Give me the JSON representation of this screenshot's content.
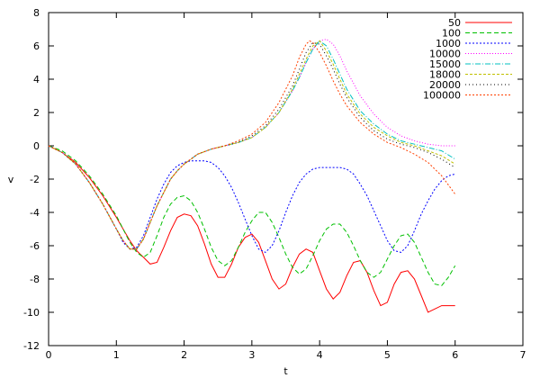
{
  "chart_data": {
    "type": "line",
    "title": "",
    "xlabel": "t",
    "ylabel": "v",
    "xlim": [
      0,
      7
    ],
    "ylim": [
      -12,
      8
    ],
    "xticks": [
      0,
      1,
      2,
      3,
      4,
      5,
      6,
      7
    ],
    "yticks": [
      -12,
      -10,
      -8,
      -6,
      -4,
      -2,
      0,
      2,
      4,
      6,
      8
    ],
    "grid": false,
    "legend_position": "top-right",
    "series": [
      {
        "name": "50",
        "color": "#ff0000",
        "dash": "solid",
        "x": [
          0,
          0.2,
          0.4,
          0.6,
          0.8,
          1.0,
          1.1,
          1.2,
          1.3,
          1.35,
          1.4,
          1.5,
          1.6,
          1.7,
          1.8,
          1.9,
          2.0,
          2.1,
          2.2,
          2.3,
          2.4,
          2.5,
          2.6,
          2.7,
          2.8,
          2.9,
          3.0,
          3.1,
          3.2,
          3.3,
          3.4,
          3.5,
          3.6,
          3.7,
          3.8,
          3.9,
          4.0,
          4.1,
          4.2,
          4.3,
          4.4,
          4.5,
          4.6,
          4.7,
          4.8,
          4.9,
          5.0,
          5.1,
          5.2,
          5.3,
          5.4,
          5.5,
          5.6,
          5.7,
          5.8,
          5.9,
          6.0
        ],
        "y": [
          0,
          -0.4,
          -1.0,
          -1.9,
          -3.0,
          -4.3,
          -5.0,
          -5.7,
          -6.3,
          -6.5,
          -6.7,
          -7.1,
          -7.0,
          -6.1,
          -5.1,
          -4.3,
          -4.1,
          -4.2,
          -4.8,
          -5.9,
          -7.1,
          -7.9,
          -7.9,
          -7.1,
          -6.1,
          -5.5,
          -5.3,
          -5.8,
          -6.9,
          -8.0,
          -8.6,
          -8.3,
          -7.3,
          -6.5,
          -6.2,
          -6.4,
          -7.5,
          -8.6,
          -9.2,
          -8.8,
          -7.8,
          -7.0,
          -6.9,
          -7.6,
          -8.7,
          -9.6,
          -9.4,
          -8.3,
          -7.6,
          -7.5,
          -8.0,
          -9.0,
          -10.0,
          -9.8,
          -9.6,
          -9.6,
          -9.6
        ]
      },
      {
        "name": "100",
        "color": "#00c000",
        "dash": "5,3",
        "x": [
          0,
          0.2,
          0.4,
          0.6,
          0.8,
          1.0,
          1.1,
          1.2,
          1.3,
          1.4,
          1.5,
          1.6,
          1.7,
          1.8,
          1.9,
          2.0,
          2.1,
          2.2,
          2.3,
          2.4,
          2.5,
          2.6,
          2.7,
          2.8,
          2.9,
          3.0,
          3.1,
          3.2,
          3.3,
          3.4,
          3.5,
          3.6,
          3.7,
          3.8,
          3.9,
          4.0,
          4.1,
          4.2,
          4.3,
          4.4,
          4.5,
          4.6,
          4.7,
          4.8,
          4.9,
          5.0,
          5.1,
          5.2,
          5.3,
          5.4,
          5.5,
          5.6,
          5.7,
          5.8,
          5.9,
          6.0
        ],
        "y": [
          0,
          -0.3,
          -0.9,
          -1.8,
          -2.9,
          -4.2,
          -5.0,
          -5.8,
          -6.4,
          -6.7,
          -6.4,
          -5.4,
          -4.3,
          -3.5,
          -3.1,
          -3.0,
          -3.3,
          -4.0,
          -5.0,
          -6.1,
          -6.9,
          -7.2,
          -6.9,
          -6.1,
          -5.2,
          -4.5,
          -4.0,
          -4.0,
          -4.6,
          -5.5,
          -6.5,
          -7.3,
          -7.7,
          -7.4,
          -6.6,
          -5.7,
          -5.0,
          -4.7,
          -4.7,
          -5.2,
          -6.0,
          -6.9,
          -7.6,
          -7.9,
          -7.6,
          -6.8,
          -6.0,
          -5.4,
          -5.3,
          -5.8,
          -6.7,
          -7.6,
          -8.3,
          -8.4,
          -7.9,
          -7.2
        ]
      },
      {
        "name": "1000",
        "color": "#0000ff",
        "dash": "2,2",
        "x": [
          0,
          0.2,
          0.4,
          0.6,
          0.8,
          1.0,
          1.1,
          1.2,
          1.3,
          1.4,
          1.5,
          1.6,
          1.7,
          1.8,
          1.9,
          2.0,
          2.1,
          2.2,
          2.3,
          2.4,
          2.5,
          2.6,
          2.7,
          2.8,
          2.9,
          3.0,
          3.1,
          3.2,
          3.3,
          3.4,
          3.5,
          3.6,
          3.7,
          3.8,
          3.9,
          4.0,
          4.1,
          4.2,
          4.3,
          4.4,
          4.5,
          4.6,
          4.7,
          4.8,
          4.9,
          5.0,
          5.1,
          5.2,
          5.3,
          5.4,
          5.5,
          5.6,
          5.7,
          5.8,
          5.9,
          6.0
        ],
        "y": [
          0,
          -0.4,
          -1.1,
          -2.2,
          -3.5,
          -5.0,
          -5.8,
          -6.2,
          -6.1,
          -5.4,
          -4.3,
          -3.2,
          -2.3,
          -1.6,
          -1.2,
          -1.0,
          -0.9,
          -0.9,
          -0.9,
          -1.0,
          -1.3,
          -1.8,
          -2.5,
          -3.4,
          -4.4,
          -5.4,
          -6.2,
          -6.4,
          -6.0,
          -5.1,
          -4.0,
          -3.0,
          -2.2,
          -1.7,
          -1.4,
          -1.3,
          -1.3,
          -1.3,
          -1.3,
          -1.4,
          -1.7,
          -2.3,
          -3.0,
          -3.9,
          -4.8,
          -5.7,
          -6.3,
          -6.4,
          -6.0,
          -5.1,
          -4.1,
          -3.3,
          -2.6,
          -2.1,
          -1.8,
          -1.7
        ]
      },
      {
        "name": "10000",
        "color": "#ff00ff",
        "dash": "1,2",
        "x": [
          0,
          0.2,
          0.4,
          0.6,
          0.8,
          1.0,
          1.1,
          1.2,
          1.3,
          1.4,
          1.5,
          1.6,
          1.7,
          1.8,
          1.9,
          2.0,
          2.2,
          2.4,
          2.6,
          2.8,
          3.0,
          3.2,
          3.4,
          3.6,
          3.7,
          3.8,
          3.9,
          4.0,
          4.1,
          4.2,
          4.3,
          4.4,
          4.6,
          4.8,
          5.0,
          5.2,
          5.4,
          5.6,
          5.8,
          6.0
        ],
        "y": [
          0,
          -0.4,
          -1.1,
          -2.2,
          -3.5,
          -5.0,
          -5.7,
          -6.2,
          -6.2,
          -5.6,
          -4.6,
          -3.6,
          -2.8,
          -2.0,
          -1.5,
          -1.1,
          -0.5,
          -0.2,
          0.0,
          0.2,
          0.5,
          1.1,
          2.0,
          3.3,
          4.1,
          5.0,
          5.8,
          6.3,
          6.4,
          6.1,
          5.4,
          4.5,
          3.0,
          1.9,
          1.1,
          0.6,
          0.3,
          0.1,
          0.0,
          0.0
        ]
      },
      {
        "name": "15000",
        "color": "#00c0c0",
        "dash": "6,2,1,2",
        "x": [
          0,
          0.2,
          0.4,
          0.6,
          0.8,
          1.0,
          1.1,
          1.2,
          1.3,
          1.4,
          1.5,
          1.6,
          1.7,
          1.8,
          1.9,
          2.0,
          2.2,
          2.4,
          2.6,
          2.8,
          3.0,
          3.2,
          3.4,
          3.6,
          3.7,
          3.8,
          3.9,
          4.0,
          4.1,
          4.2,
          4.3,
          4.4,
          4.6,
          4.8,
          5.0,
          5.2,
          5.4,
          5.6,
          5.8,
          6.0
        ],
        "y": [
          0,
          -0.4,
          -1.1,
          -2.2,
          -3.5,
          -5.0,
          -5.7,
          -6.2,
          -6.2,
          -5.6,
          -4.6,
          -3.6,
          -2.8,
          -2.0,
          -1.5,
          -1.1,
          -0.5,
          -0.2,
          0.0,
          0.2,
          0.5,
          1.1,
          2.0,
          3.3,
          4.1,
          5.0,
          5.8,
          6.3,
          6.0,
          5.2,
          4.3,
          3.4,
          2.1,
          1.3,
          0.7,
          0.3,
          0.1,
          -0.1,
          -0.3,
          -0.8
        ]
      },
      {
        "name": "18000",
        "color": "#c0c000",
        "dash": "3,2",
        "x": [
          0,
          0.2,
          0.4,
          0.6,
          0.8,
          1.0,
          1.1,
          1.2,
          1.3,
          1.4,
          1.5,
          1.6,
          1.7,
          1.8,
          1.9,
          2.0,
          2.2,
          2.4,
          2.6,
          2.8,
          3.0,
          3.2,
          3.4,
          3.6,
          3.7,
          3.8,
          3.9,
          4.0,
          4.1,
          4.2,
          4.3,
          4.4,
          4.6,
          4.8,
          5.0,
          5.2,
          5.4,
          5.6,
          5.8,
          6.0
        ],
        "y": [
          0,
          -0.4,
          -1.1,
          -2.2,
          -3.5,
          -5.0,
          -5.7,
          -6.2,
          -6.2,
          -5.6,
          -4.6,
          -3.6,
          -2.8,
          -2.0,
          -1.5,
          -1.1,
          -0.5,
          -0.2,
          0.0,
          0.2,
          0.5,
          1.1,
          2.0,
          3.4,
          4.3,
          5.2,
          6.0,
          6.3,
          5.7,
          4.9,
          4.0,
          3.1,
          1.9,
          1.1,
          0.6,
          0.2,
          0.0,
          -0.3,
          -0.6,
          -1.1
        ]
      },
      {
        "name": "20000",
        "color": "#000000",
        "dash": "1,3",
        "x": [
          0,
          0.2,
          0.4,
          0.6,
          0.8,
          1.0,
          1.1,
          1.2,
          1.3,
          1.4,
          1.5,
          1.6,
          1.7,
          1.8,
          1.9,
          2.0,
          2.2,
          2.4,
          2.6,
          2.8,
          3.0,
          3.2,
          3.4,
          3.6,
          3.7,
          3.8,
          3.9,
          4.0,
          4.1,
          4.2,
          4.3,
          4.4,
          4.6,
          4.8,
          5.0,
          5.2,
          5.4,
          5.6,
          5.8,
          6.0
        ],
        "y": [
          0,
          -0.4,
          -1.1,
          -2.2,
          -3.5,
          -5.0,
          -5.7,
          -6.2,
          -6.2,
          -5.6,
          -4.6,
          -3.6,
          -2.8,
          -2.0,
          -1.5,
          -1.1,
          -0.5,
          -0.2,
          0.0,
          0.2,
          0.6,
          1.2,
          2.2,
          3.6,
          4.6,
          5.6,
          6.2,
          6.1,
          5.4,
          4.6,
          3.7,
          2.9,
          1.7,
          0.9,
          0.4,
          0.1,
          -0.1,
          -0.4,
          -0.8,
          -1.3
        ]
      },
      {
        "name": "100000",
        "color": "#ff4000",
        "dash": "2,2",
        "x": [
          0,
          0.2,
          0.4,
          0.6,
          0.8,
          1.0,
          1.1,
          1.2,
          1.3,
          1.4,
          1.5,
          1.6,
          1.7,
          1.8,
          1.9,
          2.0,
          2.2,
          2.4,
          2.6,
          2.8,
          3.0,
          3.2,
          3.4,
          3.6,
          3.7,
          3.8,
          3.85,
          3.9,
          4.0,
          4.1,
          4.2,
          4.3,
          4.4,
          4.6,
          4.8,
          5.0,
          5.2,
          5.4,
          5.6,
          5.8,
          6.0
        ],
        "y": [
          0,
          -0.4,
          -1.1,
          -2.2,
          -3.5,
          -5.0,
          -5.7,
          -6.2,
          -6.2,
          -5.6,
          -4.6,
          -3.6,
          -2.8,
          -2.0,
          -1.5,
          -1.1,
          -0.5,
          -0.2,
          0.0,
          0.3,
          0.7,
          1.4,
          2.6,
          4.2,
          5.3,
          6.1,
          6.3,
          6.2,
          5.6,
          4.8,
          3.9,
          3.1,
          2.4,
          1.4,
          0.7,
          0.2,
          -0.1,
          -0.5,
          -1.0,
          -1.8,
          -2.9
        ]
      }
    ]
  }
}
